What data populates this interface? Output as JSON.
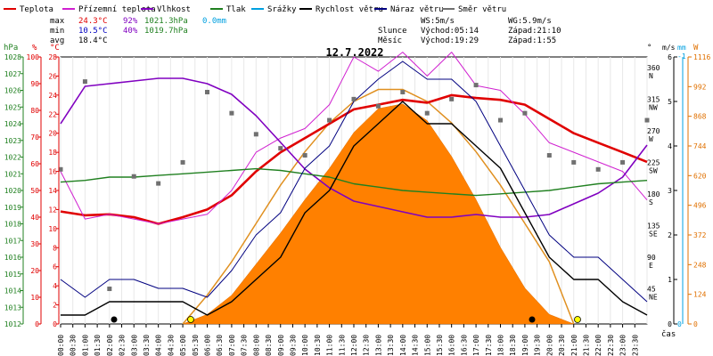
{
  "chart_data": {
    "type": "line",
    "title": "12.7.2022",
    "legend": [
      {
        "name": "Teplota",
        "color": "#e00000"
      },
      {
        "name": "Přízemní teplota",
        "color": "#d020d0"
      },
      {
        "name": "Vlhkost",
        "color": "#8000c0"
      },
      {
        "name": "Tlak",
        "color": "#208020"
      },
      {
        "name": "Srážky",
        "color": "#00a0e0"
      },
      {
        "name": "Rychlost větru",
        "color": "#000000"
      },
      {
        "name": "Náraz větru",
        "color": "#000080"
      },
      {
        "name": "Směr větru",
        "color": "#707070"
      }
    ],
    "stats": {
      "max": {
        "label": "max",
        "temp": "24.3°C",
        "hum": "92%",
        "press": "1021.3hPa",
        "rain": "0.0mm"
      },
      "min": {
        "label": "min",
        "temp": "10.5°C",
        "hum": "40%",
        "press": "1019.7hPa"
      },
      "avg": {
        "label": "avg",
        "temp": "18.4°C"
      }
    },
    "wind_info": {
      "ws": "WS:5m/s",
      "wg": "WG:5.9m/s"
    },
    "sun": {
      "label": "Slunce",
      "rise": "Východ:05:14",
      "set": "Západ:21:10"
    },
    "moon": {
      "label": "Měsíc",
      "rise": "Východ:19:29",
      "set": "Západ:1:55"
    },
    "axes": {
      "hpa": {
        "unit": "hPa",
        "min": 1012,
        "max": 1028,
        "ticks": [
          "1012",
          "1013",
          "1014",
          "1015",
          "1016",
          "1017",
          "1018",
          "1019",
          "1020",
          "1021",
          "1022",
          "1023",
          "1024",
          "1025",
          "1026",
          "1027",
          "1028"
        ]
      },
      "pct": {
        "unit": "%",
        "min": 0,
        "max": 100,
        "ticks": [
          "0",
          "10",
          "20",
          "30",
          "40",
          "50",
          "60",
          "70",
          "80",
          "90",
          "100"
        ]
      },
      "celsius": {
        "unit": "°C",
        "min": 0,
        "max": 28,
        "ticks": [
          "0",
          "2",
          "4",
          "6",
          "8",
          "10",
          "12",
          "14",
          "16",
          "18",
          "20",
          "22",
          "24",
          "26",
          "28"
        ]
      },
      "dir": {
        "unit": "°",
        "ticks": [
          {
            "deg": "45",
            "lbl": "NE"
          },
          {
            "deg": "90",
            "lbl": "E"
          },
          {
            "deg": "135",
            "lbl": "SE"
          },
          {
            "deg": "180",
            "lbl": "S"
          },
          {
            "deg": "225",
            "lbl": "SW"
          },
          {
            "deg": "270",
            "lbl": "W"
          },
          {
            "deg": "315",
            "lbl": "NW"
          },
          {
            "deg": "360",
            "lbl": "N"
          }
        ]
      },
      "wind": {
        "unit": "m/s",
        "min": 0,
        "max": 6,
        "ticks": [
          "0",
          "1",
          "2",
          "3",
          "4",
          "5",
          "6"
        ]
      },
      "rain": {
        "unit": "mm",
        "ticks": [
          "0"
        ],
        "top_label": "-1"
      },
      "solar": {
        "unit": "W",
        "min": 0,
        "max": 1116,
        "ticks": [
          "0",
          "124",
          "248",
          "372",
          "496",
          "620",
          "744",
          "868",
          "992",
          "1116"
        ]
      },
      "time": {
        "label": "čas",
        "ticks": [
          "00:00",
          "00:30",
          "01:00",
          "01:30",
          "02:00",
          "02:30",
          "03:00",
          "03:30",
          "04:00",
          "04:30",
          "05:00",
          "05:30",
          "06:00",
          "06:30",
          "07:00",
          "07:30",
          "08:00",
          "08:30",
          "09:00",
          "09:30",
          "10:00",
          "10:30",
          "11:00",
          "11:30",
          "12:00",
          "12:30",
          "13:00",
          "13:30",
          "14:00",
          "14:30",
          "15:00",
          "15:30",
          "16:00",
          "16:30",
          "17:00",
          "17:30",
          "18:00",
          "18:30",
          "19:00",
          "19:30",
          "20:00",
          "20:30",
          "21:00",
          "21:30",
          "22:00",
          "22:30",
          "23:00",
          "23:30"
        ]
      }
    },
    "series": [
      {
        "name": "Teplota",
        "axis": "celsius",
        "x": [
          0,
          1,
          2,
          3,
          4,
          5,
          6,
          7,
          8,
          9,
          10,
          11,
          12,
          13,
          14,
          15,
          16,
          17,
          18,
          19,
          20,
          21,
          22,
          23,
          24
        ],
        "values": [
          11.8,
          11.4,
          11.5,
          11.2,
          10.5,
          11.2,
          12.0,
          13.5,
          16.0,
          18.0,
          19.5,
          21.0,
          22.5,
          23.0,
          23.5,
          23.2,
          24.0,
          23.7,
          23.5,
          23.0,
          21.5,
          20.0,
          19.0,
          18.0,
          17.0
        ]
      },
      {
        "name": "Přízemní teplota",
        "axis": "celsius",
        "x": [
          0,
          1,
          2,
          3,
          4,
          5,
          6,
          7,
          8,
          9,
          10,
          11,
          12,
          13,
          14,
          15,
          16,
          17,
          18,
          19,
          20,
          21,
          22,
          23,
          24
        ],
        "values": [
          16.0,
          11.0,
          11.5,
          11.0,
          10.5,
          11.0,
          11.5,
          14.0,
          18.0,
          19.5,
          20.5,
          23.0,
          28.0,
          26.5,
          28.5,
          26.0,
          28.5,
          25.0,
          24.5,
          22.0,
          19.0,
          18.0,
          17.0,
          16.0,
          13.0
        ]
      },
      {
        "name": "Vlhkost",
        "axis": "pct",
        "x": [
          0,
          1,
          2,
          3,
          4,
          5,
          6,
          7,
          8,
          9,
          10,
          11,
          12,
          13,
          14,
          15,
          16,
          17,
          18,
          19,
          20,
          21,
          22,
          23,
          24
        ],
        "values": [
          75,
          89,
          90,
          91,
          92,
          92,
          90,
          86,
          78,
          68,
          58,
          51,
          46,
          44,
          42,
          40,
          40,
          41,
          40,
          40,
          41,
          45,
          49,
          55,
          67
        ]
      },
      {
        "name": "Tlak",
        "axis": "hpa",
        "x": [
          0,
          1,
          2,
          3,
          4,
          5,
          6,
          7,
          8,
          9,
          10,
          11,
          12,
          13,
          14,
          15,
          16,
          17,
          18,
          19,
          20,
          21,
          22,
          23,
          24
        ],
        "values": [
          1020.5,
          1020.6,
          1020.8,
          1020.8,
          1020.9,
          1021.0,
          1021.1,
          1021.2,
          1021.3,
          1021.2,
          1021.0,
          1020.8,
          1020.4,
          1020.2,
          1020.0,
          1019.9,
          1019.8,
          1019.7,
          1019.8,
          1019.9,
          1020.0,
          1020.2,
          1020.4,
          1020.5,
          1020.6
        ]
      },
      {
        "name": "Rychlost větru",
        "axis": "wind",
        "x": [
          0,
          1,
          2,
          3,
          4,
          5,
          6,
          7,
          8,
          9,
          10,
          11,
          12,
          13,
          14,
          15,
          16,
          17,
          18,
          19,
          20,
          21,
          22,
          23,
          24
        ],
        "values": [
          0.2,
          0.2,
          0.5,
          0.5,
          0.5,
          0.5,
          0.2,
          0.5,
          1.0,
          1.5,
          2.5,
          3.0,
          4.0,
          4.5,
          5.0,
          4.5,
          4.5,
          4.0,
          3.5,
          2.5,
          1.5,
          1.0,
          1.0,
          0.5,
          0.2
        ]
      },
      {
        "name": "Náraz větru",
        "axis": "wind",
        "x": [
          0,
          1,
          2,
          3,
          4,
          5,
          6,
          7,
          8,
          9,
          10,
          11,
          12,
          13,
          14,
          15,
          16,
          17,
          18,
          19,
          20,
          21,
          22,
          23,
          24
        ],
        "values": [
          1.0,
          0.6,
          1.0,
          1.0,
          0.8,
          0.8,
          0.6,
          1.2,
          2.0,
          2.5,
          3.5,
          4.0,
          5.0,
          5.5,
          5.9,
          5.5,
          5.5,
          5.0,
          4.0,
          3.0,
          2.0,
          1.5,
          1.5,
          1.0,
          0.5
        ]
      },
      {
        "name": "Směr větru",
        "axis": "dir",
        "x": [
          0,
          1,
          2,
          3,
          4,
          5,
          6,
          7,
          8,
          9,
          10,
          11,
          12,
          13,
          14,
          15,
          16,
          17,
          18,
          19,
          20,
          21,
          22,
          23,
          24
        ],
        "values": [
          220,
          345,
          50,
          210,
          200,
          230,
          330,
          300,
          270,
          250,
          240,
          290,
          320,
          310,
          330,
          300,
          320,
          340,
          290,
          300,
          240,
          230,
          220,
          230,
          290
        ]
      },
      {
        "name": "Solar",
        "axis": "solar",
        "x": [
          5,
          6,
          7,
          8,
          9,
          10,
          11,
          12,
          13,
          14,
          15,
          16,
          17,
          18,
          19,
          20,
          21
        ],
        "values": [
          0,
          40,
          120,
          250,
          380,
          520,
          650,
          800,
          900,
          920,
          850,
          700,
          520,
          320,
          150,
          40,
          0
        ]
      }
    ],
    "sun_curve": {
      "axis": "solar",
      "x": [
        5,
        6,
        7,
        8,
        9,
        10,
        11,
        12,
        13,
        14,
        15,
        16,
        17,
        18,
        19,
        20,
        21
      ],
      "values": [
        0,
        120,
        260,
        420,
        580,
        720,
        840,
        930,
        980,
        980,
        930,
        840,
        720,
        580,
        420,
        260,
        0
      ]
    }
  }
}
